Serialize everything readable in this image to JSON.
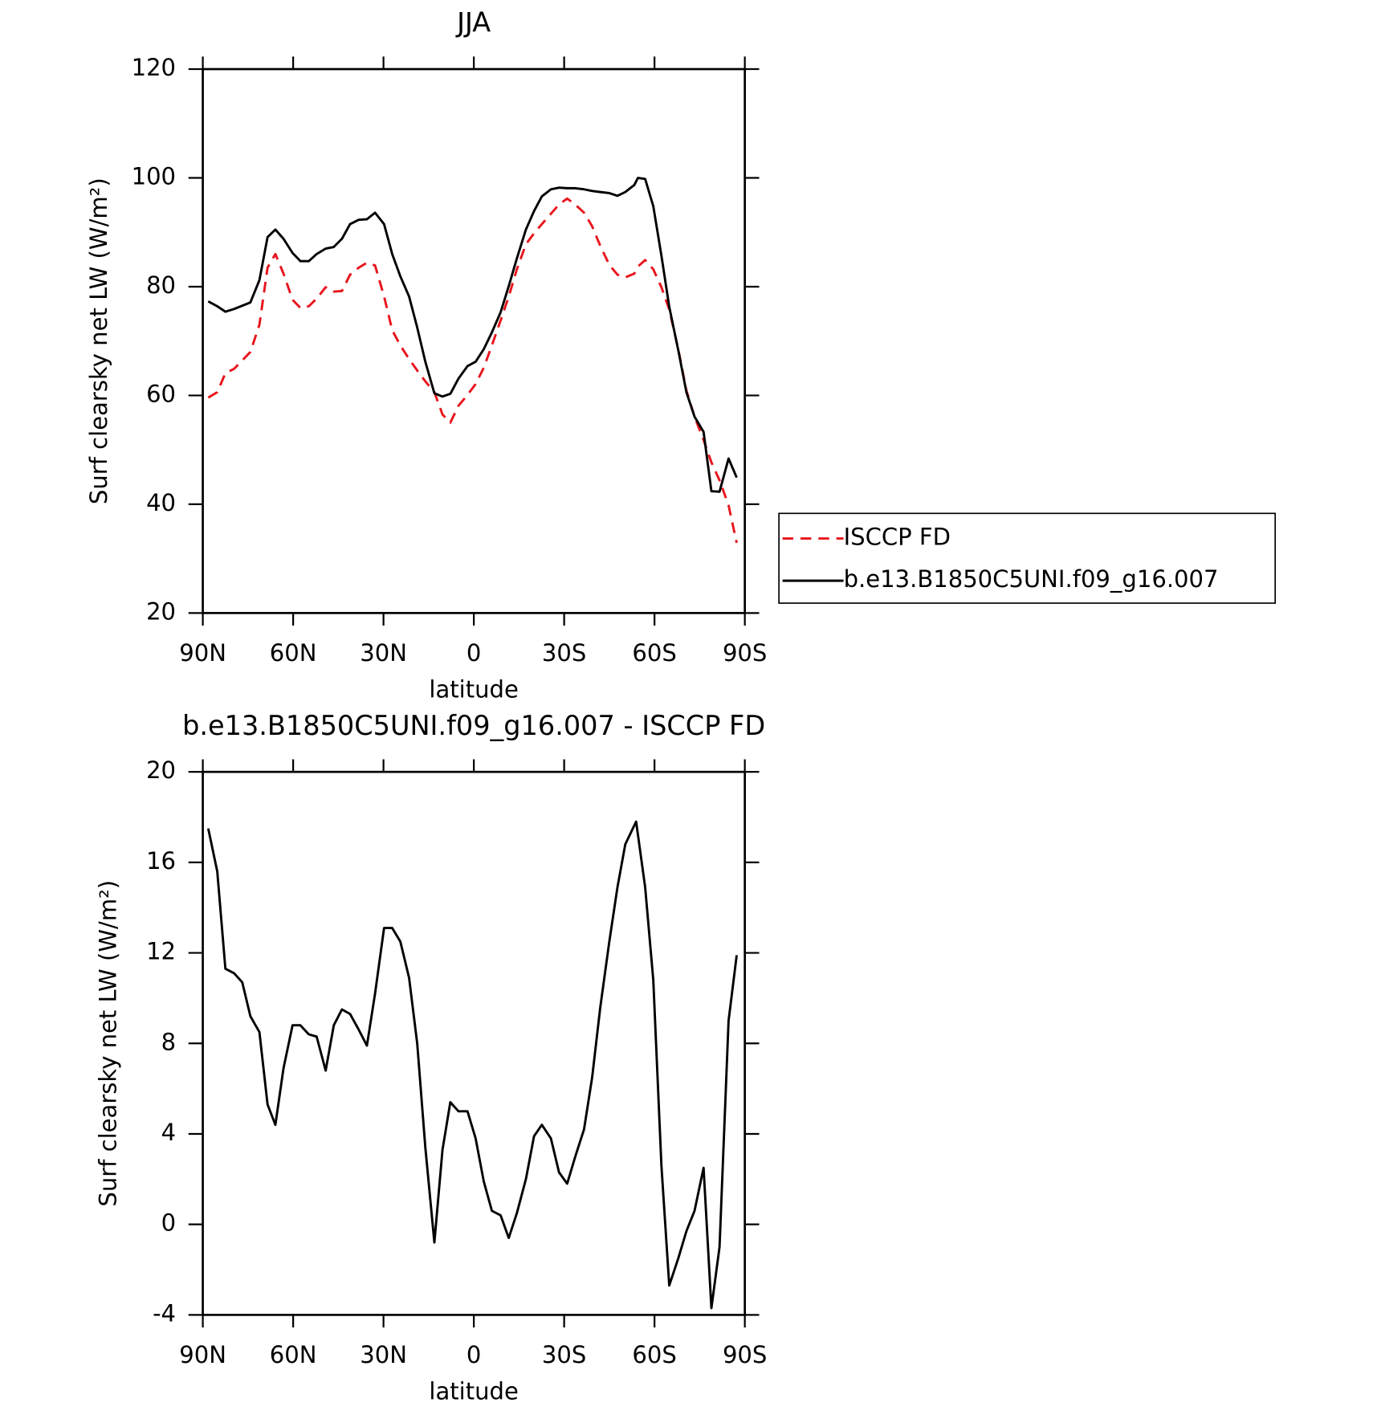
{
  "chart_data": [
    {
      "type": "line",
      "title": "JJA",
      "xlabel": "latitude",
      "ylabel": "Surf clearsky net LW (W/m²)",
      "x": [
        88.2,
        85.2,
        82.5,
        79.6,
        74.2,
        71.2,
        68.5,
        65.9,
        63.2,
        60.2,
        57.6,
        54.8,
        52.2,
        49.2,
        46.5,
        43.8,
        41.1,
        38.2,
        35.5,
        32.8,
        29.8,
        27.1,
        24.4,
        21.5,
        18.8,
        16.1,
        13.1,
        10.4,
        7.8,
        5.1,
        2.1,
        -0.6,
        -3.3,
        -6.0,
        -8.9,
        -11.6,
        -14.3,
        -17.3,
        -20.0,
        -22.6,
        -25.6,
        -28.3,
        -31.0,
        -33.7,
        -36.6,
        -39.3,
        -42.0,
        -45.0,
        -47.7,
        -50.3,
        -53.3,
        -54.5,
        -56.9,
        -59.6,
        -62.3,
        -64.9,
        -67.9,
        -70.6,
        -73.3,
        -76.3,
        -78.9,
        -81.6,
        -84.6,
        -87.3
      ],
      "series": [
        {
          "name": "ISCCP FD",
          "color": "#e8141c",
          "dashed": true,
          "values": [
            59.6,
            60.6,
            64.1,
            64.9,
            68.0,
            73.0,
            83.5,
            86.0,
            82.4,
            77.6,
            76.1,
            76.4,
            77.8,
            79.9,
            79.1,
            79.2,
            82.2,
            83.5,
            84.4,
            83.9,
            78.2,
            72.0,
            69.2,
            66.7,
            64.6,
            62.6,
            60.6,
            56.5,
            55.0,
            58.1,
            60.1,
            62.1,
            65.1,
            69.2,
            73.8,
            78.2,
            83.2,
            87.8,
            89.8,
            91.5,
            93.4,
            95.1,
            96.2,
            95.1,
            93.6,
            91.1,
            87.5,
            84.0,
            82.2,
            81.7,
            82.4,
            83.7,
            84.9,
            83.2,
            79.9,
            75.8,
            68.5,
            60.9,
            56.1,
            51.8,
            47.7,
            44.4,
            39.8,
            32.9
          ]
        },
        {
          "name": "b.e13.B1850C5UNI.f09_g16.007",
          "color": "#000000",
          "dashed": false,
          "values": [
            77.3,
            76.4,
            75.4,
            75.9,
            77.1,
            81.2,
            89.1,
            90.5,
            88.8,
            86.2,
            84.7,
            84.7,
            86.0,
            87.0,
            87.3,
            88.8,
            91.5,
            92.3,
            92.4,
            93.6,
            91.5,
            86.0,
            81.9,
            78.2,
            72.5,
            66.2,
            60.4,
            59.8,
            60.3,
            63.1,
            65.4,
            66.2,
            68.5,
            71.6,
            75.3,
            80.1,
            85.2,
            90.5,
            93.9,
            96.6,
            97.9,
            98.2,
            98.1,
            98.1,
            97.9,
            97.6,
            97.4,
            97.2,
            96.7,
            97.4,
            98.7,
            100,
            99.8,
            94.8,
            85.7,
            76.3,
            68.3,
            60.6,
            56.1,
            53.3,
            42.4,
            42.3,
            48.4,
            44.9
          ]
        }
      ],
      "xlim": [
        90,
        -90
      ],
      "xticks": [
        {
          "value": 90,
          "label": "90N"
        },
        {
          "value": 60,
          "label": "60N"
        },
        {
          "value": 30,
          "label": "30N"
        },
        0,
        {
          "value": -30,
          "label": "30S"
        },
        {
          "value": -60,
          "label": "60S"
        },
        {
          "value": -90,
          "label": "90S"
        }
      ],
      "ylim": [
        20,
        120
      ],
      "yticks": [
        20,
        40,
        60,
        80,
        100,
        120
      ],
      "legend": "right",
      "grid": false
    },
    {
      "type": "line",
      "title": "b.e13.B1850C5UNI.f09_g16.007 - ISCCP FD",
      "xlabel": "latitude",
      "ylabel": "Surf clearsky net LW (W/m²)",
      "x": [
        88.2,
        85.2,
        82.5,
        79.6,
        76.9,
        74.2,
        71.2,
        68.5,
        65.9,
        63.2,
        60.2,
        57.6,
        54.8,
        52.2,
        49.2,
        46.5,
        43.8,
        41.1,
        38.2,
        35.5,
        32.8,
        29.8,
        27.1,
        24.4,
        21.5,
        18.8,
        16.1,
        13.1,
        10.4,
        7.8,
        5.1,
        2.1,
        -0.6,
        -3.3,
        -6.0,
        -8.9,
        -11.6,
        -14.3,
        -17.3,
        -20.0,
        -22.6,
        -25.6,
        -28.3,
        -31.0,
        -33.7,
        -36.6,
        -39.3,
        -42.0,
        -45.0,
        -47.7,
        -50.3,
        -53.9,
        -56.9,
        -59.6,
        -62.3,
        -64.9,
        -67.9,
        -70.6,
        -73.3,
        -76.3,
        -78.9,
        -81.6,
        -84.6,
        -87.3
      ],
      "values": [
        17.5,
        15.6,
        11.3,
        11.1,
        10.7,
        9.2,
        8.5,
        5.3,
        4.4,
        6.9,
        8.8,
        8.8,
        8.4,
        8.3,
        6.8,
        8.8,
        9.5,
        9.3,
        8.6,
        7.9,
        10.2,
        13.1,
        13.1,
        12.5,
        10.9,
        8.0,
        3.4,
        -0.8,
        3.3,
        5.4,
        5.0,
        5.0,
        3.8,
        1.9,
        0.6,
        0.4,
        -0.6,
        0.5,
        2.0,
        3.9,
        4.4,
        3.8,
        2.3,
        1.8,
        3.0,
        4.2,
        6.5,
        9.6,
        12.5,
        14.9,
        16.8,
        17.8,
        14.9,
        10.8,
        2.6,
        -2.7,
        -1.5,
        -0.3,
        0.6,
        2.5,
        -3.7,
        -1.0,
        9.0,
        11.9
      ],
      "color": "#000000",
      "xlim": [
        90,
        -90
      ],
      "xticks": [
        {
          "value": 90,
          "label": "90N"
        },
        {
          "value": 60,
          "label": "60N"
        },
        {
          "value": 30,
          "label": "30N"
        },
        0,
        {
          "value": -30,
          "label": "30S"
        },
        {
          "value": -60,
          "label": "60S"
        },
        {
          "value": -90,
          "label": "90S"
        }
      ],
      "ylim": [
        -4,
        20
      ],
      "yticks": [
        -4,
        0,
        4,
        8,
        12,
        16,
        20
      ],
      "grid": false
    }
  ]
}
